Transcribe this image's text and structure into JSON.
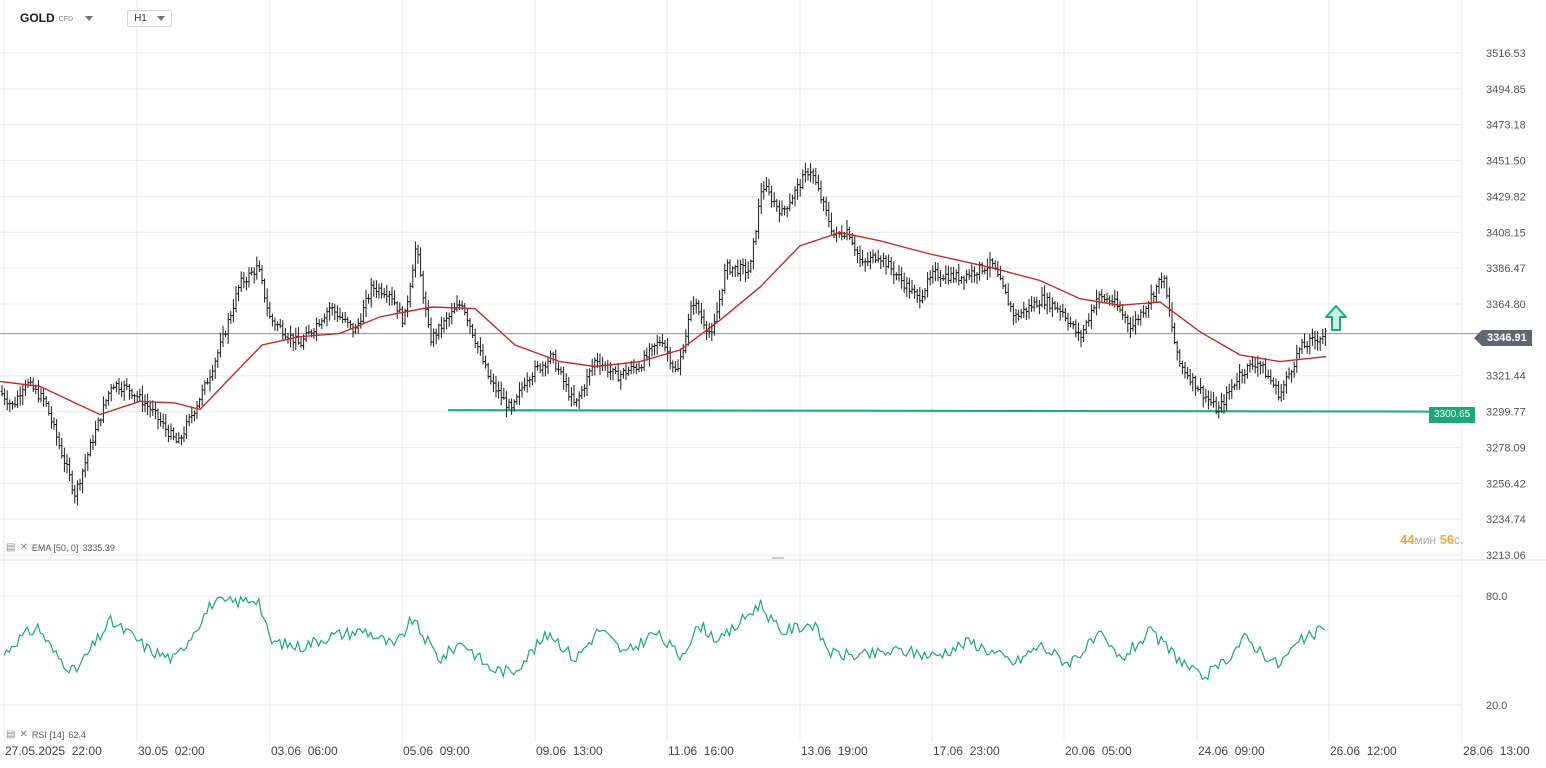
{
  "header": {
    "symbol": "GOLD",
    "symbol_type": "CFD",
    "timeframe": "H1"
  },
  "colors": {
    "grid": "#e6e9ee",
    "candle": "#1b1b1b",
    "ema": "#c62828",
    "rsi": "#19a97b",
    "support": "#19a97b",
    "current_tag": "#5f6670",
    "timer": "#f2a43a"
  },
  "price_axis": {
    "ticks": [
      "3516.53",
      "3494.85",
      "3473.18",
      "3451.50",
      "3429.82",
      "3408.15",
      "3386.47",
      "3364.80",
      "3321.44",
      "3299.77",
      "3278.09",
      "3256.42",
      "3234.74",
      "3213.06"
    ],
    "current_price": "3346.91",
    "support_price": "3300.65"
  },
  "rsi_axis": {
    "ticks": [
      "80.0",
      "20.0"
    ]
  },
  "time_axis": {
    "labels": [
      "27.05.2025  22:00",
      "30.05  02:00",
      "03.06  06:00",
      "05.06  09:00",
      "09.06  13:00",
      "11.06  16:00",
      "13.06  19:00",
      "17.06  23:00",
      "20.06  05:00",
      "24.06  09:00",
      "26.06  12:00",
      "28.06  13:00"
    ]
  },
  "indicators": {
    "ema_legend": "EMA [50, 0]",
    "ema_value": "3335.39",
    "rsi_legend": "RSI [14]",
    "rsi_value": "62.4"
  },
  "timer": {
    "minutes": "44",
    "minutes_unit": "мин",
    "seconds": "56",
    "seconds_unit": "с."
  },
  "chart_data": {
    "type": "candlestick",
    "timeframe": "H1",
    "title": "",
    "price_range": [
      3203,
      3528
    ],
    "sketch_keypoints": [
      [
        0,
        3312
      ],
      [
        13,
        3303
      ],
      [
        25,
        3318
      ],
      [
        45,
        3306
      ],
      [
        75,
        3250
      ],
      [
        90,
        3278
      ],
      [
        112,
        3317
      ],
      [
        130,
        3313
      ],
      [
        148,
        3303
      ],
      [
        178,
        3280
      ],
      [
        205,
        3315
      ],
      [
        222,
        3342
      ],
      [
        240,
        3377
      ],
      [
        258,
        3387
      ],
      [
        270,
        3356
      ],
      [
        300,
        3340
      ],
      [
        330,
        3363
      ],
      [
        355,
        3348
      ],
      [
        372,
        3375
      ],
      [
        390,
        3372
      ],
      [
        404,
        3354
      ],
      [
        416,
        3400
      ],
      [
        430,
        3343
      ],
      [
        462,
        3366
      ],
      [
        490,
        3318
      ],
      [
        512,
        3300
      ],
      [
        526,
        3320
      ],
      [
        552,
        3333
      ],
      [
        575,
        3303
      ],
      [
        596,
        3332
      ],
      [
        616,
        3321
      ],
      [
        640,
        3328
      ],
      [
        662,
        3344
      ],
      [
        677,
        3322
      ],
      [
        693,
        3367
      ],
      [
        712,
        3345
      ],
      [
        726,
        3387
      ],
      [
        750,
        3385
      ],
      [
        762,
        3437
      ],
      [
        782,
        3420
      ],
      [
        810,
        3447
      ],
      [
        835,
        3405
      ],
      [
        848,
        3410
      ],
      [
        862,
        3388
      ],
      [
        878,
        3395
      ],
      [
        918,
        3368
      ],
      [
        934,
        3383
      ],
      [
        960,
        3381
      ],
      [
        992,
        3389
      ],
      [
        1015,
        3357
      ],
      [
        1042,
        3368
      ],
      [
        1062,
        3361
      ],
      [
        1080,
        3344
      ],
      [
        1097,
        3369
      ],
      [
        1112,
        3367
      ],
      [
        1132,
        3351
      ],
      [
        1148,
        3366
      ],
      [
        1163,
        3382
      ],
      [
        1178,
        3330
      ],
      [
        1200,
        3313
      ],
      [
        1218,
        3300
      ],
      [
        1240,
        3323
      ],
      [
        1258,
        3330
      ],
      [
        1280,
        3310
      ],
      [
        1300,
        3338
      ],
      [
        1326,
        3347
      ]
    ],
    "support_level": 3300.65,
    "ema_keypoints": [
      [
        0,
        3318
      ],
      [
        40,
        3315
      ],
      [
        75,
        3305
      ],
      [
        100,
        3298
      ],
      [
        140,
        3306
      ],
      [
        175,
        3305
      ],
      [
        200,
        3301
      ],
      [
        230,
        3320
      ],
      [
        262,
        3340
      ],
      [
        300,
        3345
      ],
      [
        340,
        3347
      ],
      [
        380,
        3357
      ],
      [
        405,
        3360
      ],
      [
        432,
        3363
      ],
      [
        475,
        3362
      ],
      [
        515,
        3340
      ],
      [
        560,
        3330
      ],
      [
        595,
        3327
      ],
      [
        640,
        3330
      ],
      [
        680,
        3337
      ],
      [
        720,
        3355
      ],
      [
        760,
        3375
      ],
      [
        800,
        3400
      ],
      [
        840,
        3408
      ],
      [
        880,
        3403
      ],
      [
        930,
        3395
      ],
      [
        990,
        3387
      ],
      [
        1040,
        3379
      ],
      [
        1080,
        3368
      ],
      [
        1120,
        3364
      ],
      [
        1160,
        3366
      ],
      [
        1200,
        3348
      ],
      [
        1240,
        3334
      ],
      [
        1280,
        3330
      ],
      [
        1326,
        3333
      ]
    ],
    "rsi_range": [
      5,
      95
    ],
    "rsi_keypoints": [
      [
        0,
        45
      ],
      [
        15,
        55
      ],
      [
        38,
        63
      ],
      [
        55,
        48
      ],
      [
        75,
        38
      ],
      [
        110,
        66
      ],
      [
        130,
        59
      ],
      [
        150,
        50
      ],
      [
        175,
        45
      ],
      [
        212,
        76
      ],
      [
        240,
        77
      ],
      [
        258,
        79
      ],
      [
        270,
        55
      ],
      [
        300,
        52
      ],
      [
        330,
        58
      ],
      [
        365,
        61
      ],
      [
        395,
        52
      ],
      [
        412,
        67
      ],
      [
        440,
        45
      ],
      [
        462,
        55
      ],
      [
        490,
        40
      ],
      [
        512,
        38
      ],
      [
        550,
        60
      ],
      [
        575,
        45
      ],
      [
        600,
        62
      ],
      [
        625,
        48
      ],
      [
        655,
        60
      ],
      [
        680,
        47
      ],
      [
        700,
        64
      ],
      [
        720,
        55
      ],
      [
        760,
        76
      ],
      [
        780,
        60
      ],
      [
        812,
        65
      ],
      [
        832,
        48
      ],
      [
        862,
        47
      ],
      [
        900,
        50
      ],
      [
        935,
        47
      ],
      [
        970,
        55
      ],
      [
        1015,
        43
      ],
      [
        1040,
        53
      ],
      [
        1068,
        43
      ],
      [
        1100,
        58
      ],
      [
        1120,
        45
      ],
      [
        1150,
        60
      ],
      [
        1180,
        45
      ],
      [
        1200,
        35
      ],
      [
        1218,
        40
      ],
      [
        1245,
        57
      ],
      [
        1278,
        42
      ],
      [
        1300,
        55
      ],
      [
        1326,
        62
      ]
    ]
  }
}
